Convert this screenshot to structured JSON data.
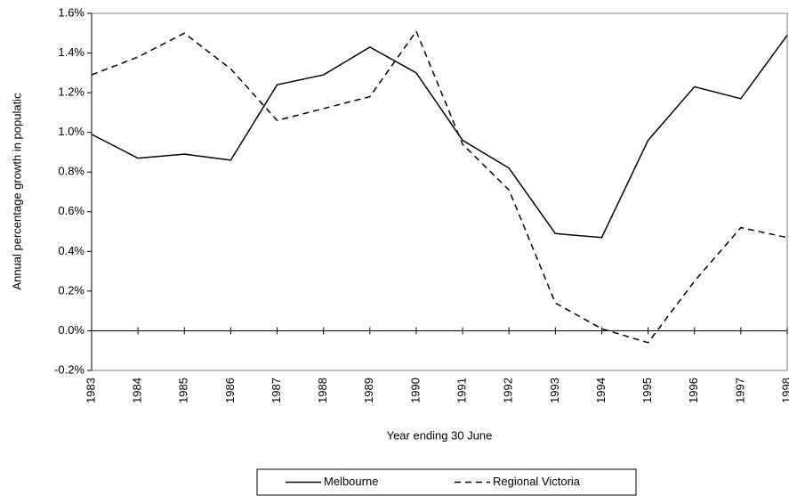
{
  "chart_data": {
    "type": "line",
    "y_label": "Annual percentage growth in populatic",
    "x_label": "Year ending 30 June",
    "categories": [
      "1983",
      "1984",
      "1985",
      "1986",
      "1987",
      "1988",
      "1989",
      "1990",
      "1991",
      "1992",
      "1993",
      "1994",
      "1995",
      "1996",
      "1997",
      "1998"
    ],
    "series": [
      {
        "name": "Melbourne",
        "color": "#000000",
        "dash": "solid",
        "values": [
          0.99,
          0.87,
          0.89,
          0.86,
          1.24,
          1.29,
          1.43,
          1.3,
          0.96,
          0.82,
          0.49,
          0.47,
          0.96,
          1.23,
          1.17,
          1.49
        ]
      },
      {
        "name": "Regional Victoria",
        "color": "#000000",
        "dash": "dashed",
        "values": [
          1.29,
          1.38,
          1.5,
          1.32,
          1.06,
          1.12,
          1.18,
          1.51,
          0.94,
          0.71,
          0.14,
          0.01,
          -0.06,
          0.25,
          0.52,
          0.47
        ]
      }
    ],
    "ylim": [
      -0.2,
      1.6
    ],
    "yticks": [
      {
        "value": -0.2,
        "label": "-0.2%"
      },
      {
        "value": 0,
        "label": "0.0%"
      },
      {
        "value": 0.2,
        "label": "0.2%"
      },
      {
        "value": 0.4,
        "label": "0.4%"
      },
      {
        "value": 0.6,
        "label": "0.6%"
      },
      {
        "value": 0.8,
        "label": "0.8%"
      },
      {
        "value": 1.0,
        "label": "1.0%"
      },
      {
        "value": 1.2,
        "label": "1.2%"
      },
      {
        "value": 1.4,
        "label": "1.4%"
      },
      {
        "value": 1.6,
        "label": "1.6%"
      }
    ],
    "grid": false,
    "legend": "bottom"
  }
}
